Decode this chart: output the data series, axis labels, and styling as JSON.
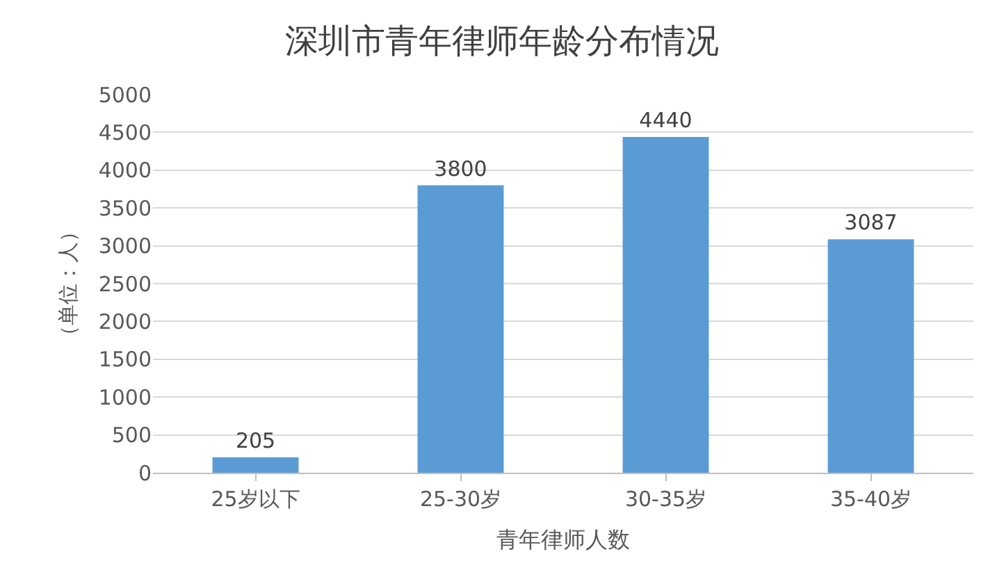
{
  "chart_data": {
    "type": "bar",
    "title": "深圳市青年律师年龄分布情况",
    "xlabel": "青年律师人数",
    "ylabel": "（单位：人）",
    "categories": [
      "25岁以下",
      "25-30岁",
      "30-35岁",
      "35-40岁"
    ],
    "values": [
      205,
      3800,
      4440,
      3087
    ],
    "color": "#5b9bd5",
    "ylim": [
      0,
      5000
    ],
    "yticks": [
      0,
      500,
      1000,
      1500,
      2000,
      2500,
      3000,
      3500,
      4000,
      4500,
      5000
    ],
    "grid": "y",
    "data_labels": true
  }
}
